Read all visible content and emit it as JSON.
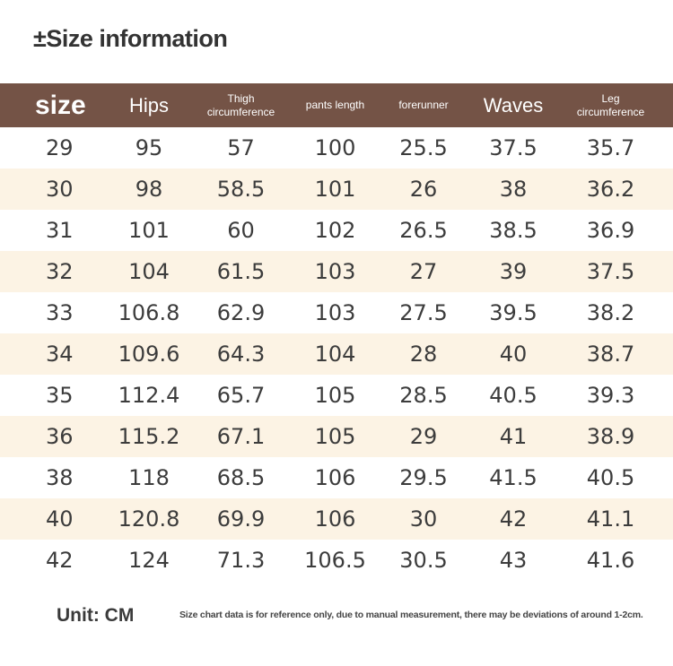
{
  "title": "±Size information",
  "headers": {
    "size": "size",
    "hips": "Hips",
    "thigh": [
      "Thigh",
      "circumference"
    ],
    "pants_length": "pants length",
    "forerunner": "forerunner",
    "waves": "Waves",
    "leg": [
      "Leg",
      "circumference"
    ]
  },
  "rows": [
    [
      "29",
      "95",
      "57",
      "100",
      "25.5",
      "37.5",
      "35.7"
    ],
    [
      "30",
      "98",
      "58.5",
      "101",
      "26",
      "38",
      "36.2"
    ],
    [
      "31",
      "101",
      "60",
      "102",
      "26.5",
      "38.5",
      "36.9"
    ],
    [
      "32",
      "104",
      "61.5",
      "103",
      "27",
      "39",
      "37.5"
    ],
    [
      "33",
      "106.8",
      "62.9",
      "103",
      "27.5",
      "39.5",
      "38.2"
    ],
    [
      "34",
      "109.6",
      "64.3",
      "104",
      "28",
      "40",
      "38.7"
    ],
    [
      "35",
      "112.4",
      "65.7",
      "105",
      "28.5",
      "40.5",
      "39.3"
    ],
    [
      "36",
      "115.2",
      "67.1",
      "105",
      "29",
      "41",
      "38.9"
    ],
    [
      "38",
      "118",
      "68.5",
      "106",
      "29.5",
      "41.5",
      "40.5"
    ],
    [
      "40",
      "120.8",
      "69.9",
      "106",
      "30",
      "42",
      "41.1"
    ],
    [
      "42",
      "124",
      "71.3",
      "106.5",
      "30.5",
      "43",
      "41.6"
    ]
  ],
  "unit": "Unit: CM",
  "note": "Size chart data is for reference only, due to manual measurement, there may be deviations of around 1-2cm.",
  "colors": {
    "header_bg": "#745346",
    "stripe_bg": "#fcf3e4"
  }
}
